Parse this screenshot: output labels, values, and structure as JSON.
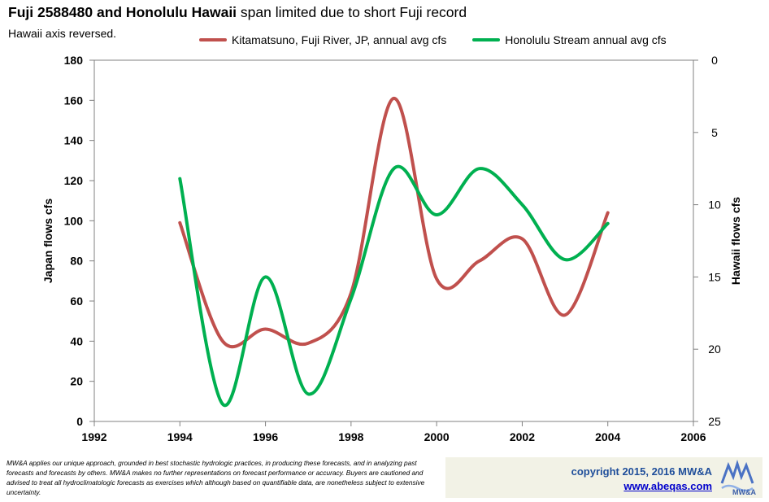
{
  "header": {
    "title_bold": "Fuji 2588480 and Honolulu Hawaii",
    "title_rest": " span limited due to short Fuji record",
    "subtitle": "Hawaii axis reversed."
  },
  "chart_data": {
    "type": "line",
    "x_axis": {
      "min": 1992,
      "max": 2006,
      "ticks": [
        "1992",
        "1994",
        "1996",
        "1998",
        "2000",
        "2002",
        "2004",
        "2006"
      ]
    },
    "y_left": {
      "label": "Japan flows cfs",
      "min": 0,
      "max": 180,
      "ticks": [
        "0",
        "20",
        "40",
        "60",
        "80",
        "100",
        "120",
        "140",
        "160",
        "180"
      ]
    },
    "y_right": {
      "label": "Hawaii flows cfs",
      "min": 0,
      "max": 25,
      "reversed": true,
      "ticks": [
        "0",
        "5",
        "10",
        "15",
        "20",
        "25"
      ]
    },
    "legend_position": "top",
    "grid": false,
    "smooth": true,
    "series": [
      {
        "name": "Kitamatsuno, Fuji River, JP, annual avg cfs",
        "axis": "left",
        "color": "#c0504d",
        "x": [
          1994,
          1995,
          1996,
          1997,
          1998,
          1999,
          2000,
          2001,
          2002,
          2003,
          2004
        ],
        "values": [
          99,
          40,
          46,
          39,
          64,
          161,
          71,
          80,
          91,
          53,
          104
        ]
      },
      {
        "name": "Honolulu Stream annual avg cfs",
        "axis": "right",
        "color": "#00b050",
        "x": [
          1994,
          1995,
          1996,
          1997,
          1998,
          1999,
          2000,
          2001,
          2002,
          2003,
          2004
        ],
        "values": [
          8.2,
          23.8,
          15.0,
          23.1,
          16.5,
          7.5,
          10.7,
          7.5,
          10.0,
          13.8,
          11.3
        ]
      }
    ]
  },
  "footer": {
    "disclaimer": "MW&A applies our unique approach, grounded in best stochastic hydrologic practices, in producing these forecasts, and in analyzing past forecasts and forecasts by others.  MW&A makes no further representations on forecast performance or accuracy.  Buyers are cautioned and advised to treat all hydroclimatologic forecasts as exercises which although based on quantifiable data, are nonetheless subject to extensive uncertainty.",
    "copyright": "copyright 2015, 2016  MW&A",
    "website": "www.abeqas.com",
    "logo_text": "MW&A"
  }
}
